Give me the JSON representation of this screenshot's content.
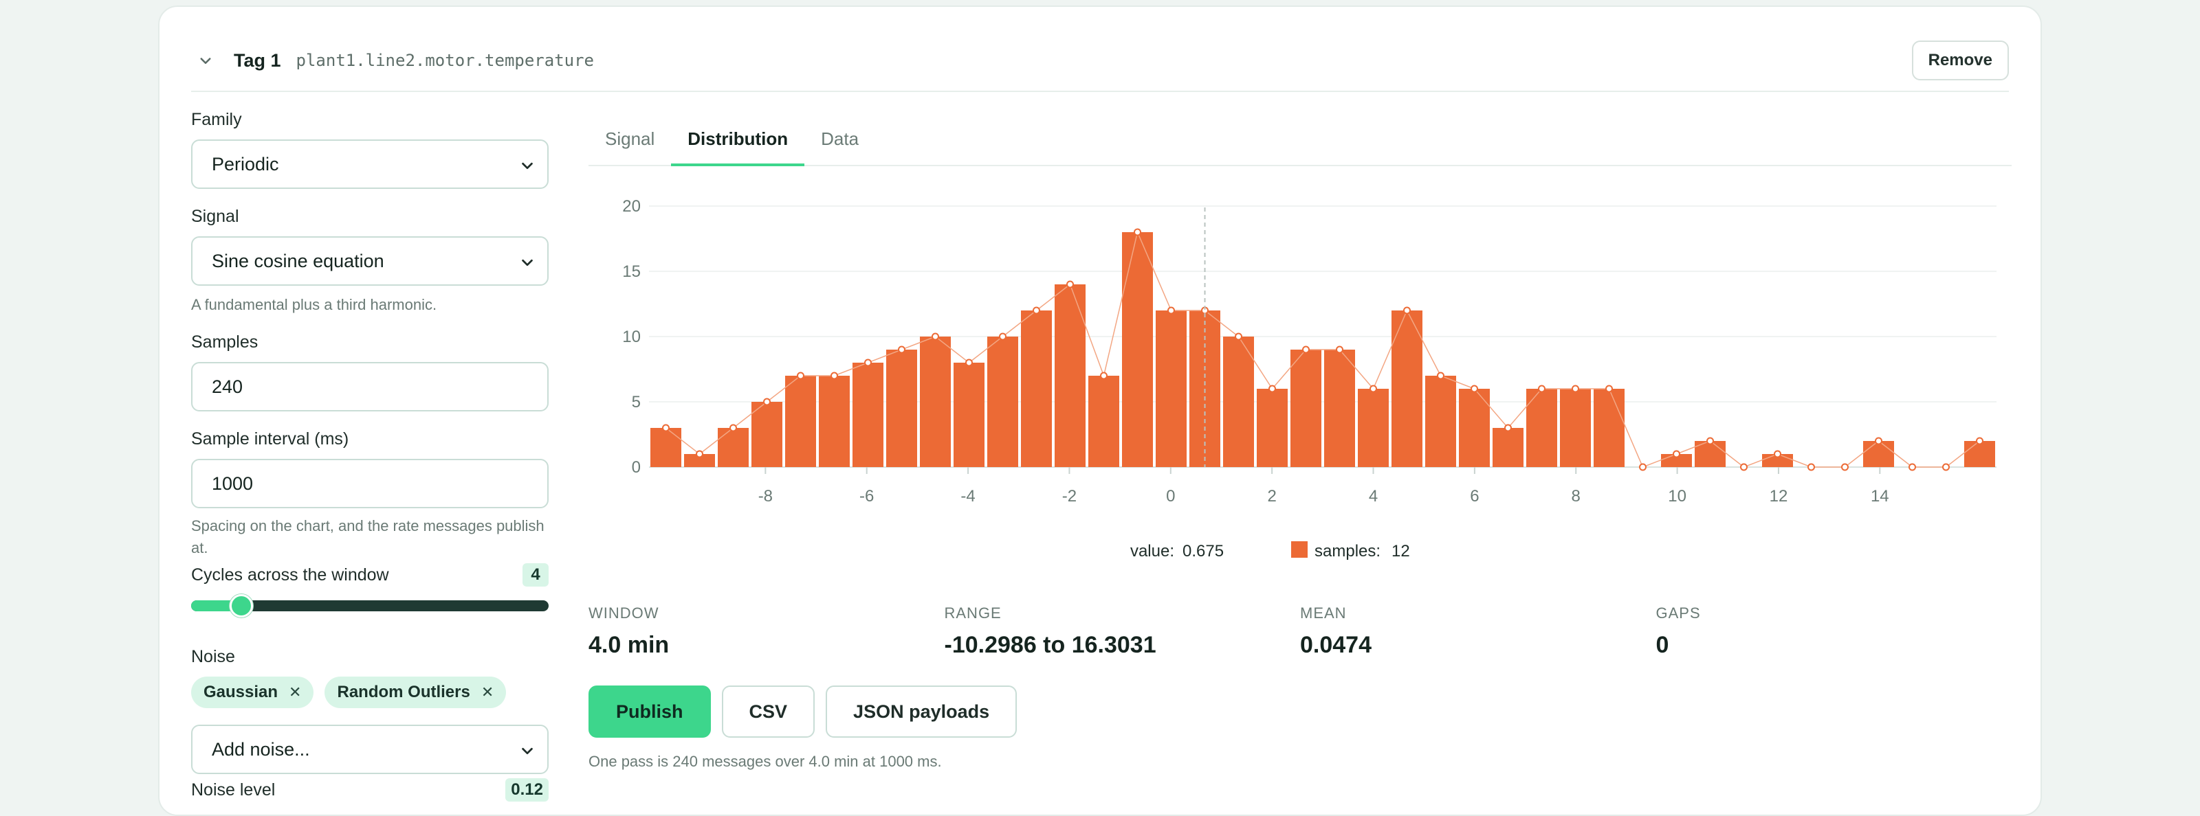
{
  "header": {
    "tag_title": "Tag 1",
    "tag_path": "plant1.line2.motor.temperature",
    "remove_label": "Remove"
  },
  "form": {
    "family_label": "Family",
    "family_value": "Periodic",
    "signal_label": "Signal",
    "signal_value": "Sine cosine equation",
    "signal_hint": "A fundamental plus a third harmonic.",
    "samples_label": "Samples",
    "samples_value": "240",
    "interval_label": "Sample interval (ms)",
    "interval_value": "1000",
    "interval_hint": "Spacing on the chart, and the rate messages publish at.",
    "cycles_label": "Cycles across the window",
    "cycles_value": "4",
    "cycles_slider_fraction": 0.14,
    "noise_label": "Noise",
    "noise_chips": [
      "Gaussian",
      "Random Outliers"
    ],
    "add_noise_placeholder": "Add noise...",
    "noise_level_label": "Noise level",
    "noise_level_value": "0.12"
  },
  "tabs": [
    {
      "label": "Signal",
      "active": false
    },
    {
      "label": "Distribution",
      "active": true
    },
    {
      "label": "Data",
      "active": false
    }
  ],
  "chart_data": {
    "type": "bar",
    "title": "",
    "xlabel": "",
    "ylabel": "",
    "xlim": [
      -10.2986,
      16.3031
    ],
    "ylim": [
      0,
      20
    ],
    "x_ticks": [
      -8,
      -6,
      -4,
      -2,
      0,
      2,
      4,
      6,
      8,
      10,
      12,
      14
    ],
    "y_ticks": [
      0,
      5,
      10,
      15,
      20
    ],
    "bin_count": 40,
    "values": [
      3,
      1,
      3,
      5,
      7,
      7,
      8,
      9,
      10,
      8,
      10,
      12,
      14,
      7,
      18,
      12,
      12,
      10,
      6,
      9,
      9,
      6,
      12,
      7,
      6,
      3,
      6,
      6,
      6,
      0,
      1,
      2,
      0,
      1,
      0,
      0,
      2,
      0,
      0,
      2
    ],
    "color": "#ec6a35",
    "hover": {
      "value": 0.675,
      "samples": 12,
      "value_label": "value:",
      "value_text": "0.675",
      "samples_label": "samples:",
      "samples_text": "12"
    },
    "grid": true
  },
  "stats": [
    {
      "key": "WINDOW",
      "value": "4.0 min"
    },
    {
      "key": "RANGE",
      "value": "-10.2986 to 16.3031"
    },
    {
      "key": "MEAN",
      "value": "0.0474"
    },
    {
      "key": "GAPS",
      "value": "0"
    }
  ],
  "actions": {
    "publish_label": "Publish",
    "csv_label": "CSV",
    "json_label": "JSON payloads",
    "footnote": "One pass is 240 messages over 4.0 min at 1000 ms."
  },
  "colors": {
    "accent": "#3dd68c",
    "bar": "#ec6a35",
    "chip_bg": "#d8f5e7"
  }
}
